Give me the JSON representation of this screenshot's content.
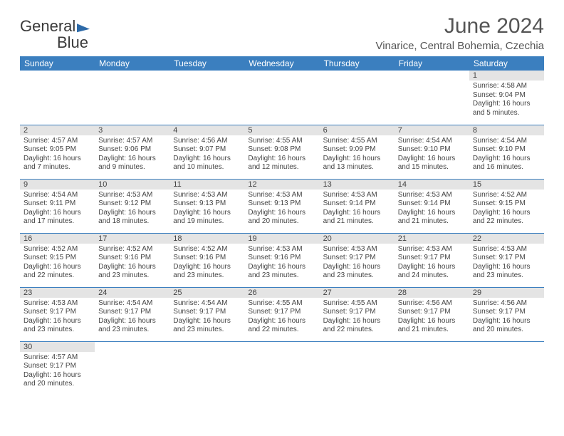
{
  "logo": {
    "word1": "General",
    "word2": "Blue"
  },
  "title": "June 2024",
  "location": "Vinarice, Central Bohemia, Czechia",
  "colors": {
    "header_bg": "#3b7fbf",
    "header_text": "#ffffff",
    "daynum_bg": "#e4e4e4",
    "text": "#444444",
    "row_border": "#3b7fbf"
  },
  "day_headers": [
    "Sunday",
    "Monday",
    "Tuesday",
    "Wednesday",
    "Thursday",
    "Friday",
    "Saturday"
  ],
  "weeks": [
    [
      null,
      null,
      null,
      null,
      null,
      null,
      {
        "n": "1",
        "sr": "Sunrise: 4:58 AM",
        "ss": "Sunset: 9:04 PM",
        "d1": "Daylight: 16 hours",
        "d2": "and 5 minutes."
      }
    ],
    [
      {
        "n": "2",
        "sr": "Sunrise: 4:57 AM",
        "ss": "Sunset: 9:05 PM",
        "d1": "Daylight: 16 hours",
        "d2": "and 7 minutes."
      },
      {
        "n": "3",
        "sr": "Sunrise: 4:57 AM",
        "ss": "Sunset: 9:06 PM",
        "d1": "Daylight: 16 hours",
        "d2": "and 9 minutes."
      },
      {
        "n": "4",
        "sr": "Sunrise: 4:56 AM",
        "ss": "Sunset: 9:07 PM",
        "d1": "Daylight: 16 hours",
        "d2": "and 10 minutes."
      },
      {
        "n": "5",
        "sr": "Sunrise: 4:55 AM",
        "ss": "Sunset: 9:08 PM",
        "d1": "Daylight: 16 hours",
        "d2": "and 12 minutes."
      },
      {
        "n": "6",
        "sr": "Sunrise: 4:55 AM",
        "ss": "Sunset: 9:09 PM",
        "d1": "Daylight: 16 hours",
        "d2": "and 13 minutes."
      },
      {
        "n": "7",
        "sr": "Sunrise: 4:54 AM",
        "ss": "Sunset: 9:10 PM",
        "d1": "Daylight: 16 hours",
        "d2": "and 15 minutes."
      },
      {
        "n": "8",
        "sr": "Sunrise: 4:54 AM",
        "ss": "Sunset: 9:10 PM",
        "d1": "Daylight: 16 hours",
        "d2": "and 16 minutes."
      }
    ],
    [
      {
        "n": "9",
        "sr": "Sunrise: 4:54 AM",
        "ss": "Sunset: 9:11 PM",
        "d1": "Daylight: 16 hours",
        "d2": "and 17 minutes."
      },
      {
        "n": "10",
        "sr": "Sunrise: 4:53 AM",
        "ss": "Sunset: 9:12 PM",
        "d1": "Daylight: 16 hours",
        "d2": "and 18 minutes."
      },
      {
        "n": "11",
        "sr": "Sunrise: 4:53 AM",
        "ss": "Sunset: 9:13 PM",
        "d1": "Daylight: 16 hours",
        "d2": "and 19 minutes."
      },
      {
        "n": "12",
        "sr": "Sunrise: 4:53 AM",
        "ss": "Sunset: 9:13 PM",
        "d1": "Daylight: 16 hours",
        "d2": "and 20 minutes."
      },
      {
        "n": "13",
        "sr": "Sunrise: 4:53 AM",
        "ss": "Sunset: 9:14 PM",
        "d1": "Daylight: 16 hours",
        "d2": "and 21 minutes."
      },
      {
        "n": "14",
        "sr": "Sunrise: 4:53 AM",
        "ss": "Sunset: 9:14 PM",
        "d1": "Daylight: 16 hours",
        "d2": "and 21 minutes."
      },
      {
        "n": "15",
        "sr": "Sunrise: 4:52 AM",
        "ss": "Sunset: 9:15 PM",
        "d1": "Daylight: 16 hours",
        "d2": "and 22 minutes."
      }
    ],
    [
      {
        "n": "16",
        "sr": "Sunrise: 4:52 AM",
        "ss": "Sunset: 9:15 PM",
        "d1": "Daylight: 16 hours",
        "d2": "and 22 minutes."
      },
      {
        "n": "17",
        "sr": "Sunrise: 4:52 AM",
        "ss": "Sunset: 9:16 PM",
        "d1": "Daylight: 16 hours",
        "d2": "and 23 minutes."
      },
      {
        "n": "18",
        "sr": "Sunrise: 4:52 AM",
        "ss": "Sunset: 9:16 PM",
        "d1": "Daylight: 16 hours",
        "d2": "and 23 minutes."
      },
      {
        "n": "19",
        "sr": "Sunrise: 4:53 AM",
        "ss": "Sunset: 9:16 PM",
        "d1": "Daylight: 16 hours",
        "d2": "and 23 minutes."
      },
      {
        "n": "20",
        "sr": "Sunrise: 4:53 AM",
        "ss": "Sunset: 9:17 PM",
        "d1": "Daylight: 16 hours",
        "d2": "and 23 minutes."
      },
      {
        "n": "21",
        "sr": "Sunrise: 4:53 AM",
        "ss": "Sunset: 9:17 PM",
        "d1": "Daylight: 16 hours",
        "d2": "and 24 minutes."
      },
      {
        "n": "22",
        "sr": "Sunrise: 4:53 AM",
        "ss": "Sunset: 9:17 PM",
        "d1": "Daylight: 16 hours",
        "d2": "and 23 minutes."
      }
    ],
    [
      {
        "n": "23",
        "sr": "Sunrise: 4:53 AM",
        "ss": "Sunset: 9:17 PM",
        "d1": "Daylight: 16 hours",
        "d2": "and 23 minutes."
      },
      {
        "n": "24",
        "sr": "Sunrise: 4:54 AM",
        "ss": "Sunset: 9:17 PM",
        "d1": "Daylight: 16 hours",
        "d2": "and 23 minutes."
      },
      {
        "n": "25",
        "sr": "Sunrise: 4:54 AM",
        "ss": "Sunset: 9:17 PM",
        "d1": "Daylight: 16 hours",
        "d2": "and 23 minutes."
      },
      {
        "n": "26",
        "sr": "Sunrise: 4:55 AM",
        "ss": "Sunset: 9:17 PM",
        "d1": "Daylight: 16 hours",
        "d2": "and 22 minutes."
      },
      {
        "n": "27",
        "sr": "Sunrise: 4:55 AM",
        "ss": "Sunset: 9:17 PM",
        "d1": "Daylight: 16 hours",
        "d2": "and 22 minutes."
      },
      {
        "n": "28",
        "sr": "Sunrise: 4:56 AM",
        "ss": "Sunset: 9:17 PM",
        "d1": "Daylight: 16 hours",
        "d2": "and 21 minutes."
      },
      {
        "n": "29",
        "sr": "Sunrise: 4:56 AM",
        "ss": "Sunset: 9:17 PM",
        "d1": "Daylight: 16 hours",
        "d2": "and 20 minutes."
      }
    ],
    [
      {
        "n": "30",
        "sr": "Sunrise: 4:57 AM",
        "ss": "Sunset: 9:17 PM",
        "d1": "Daylight: 16 hours",
        "d2": "and 20 minutes."
      },
      null,
      null,
      null,
      null,
      null,
      null
    ]
  ]
}
